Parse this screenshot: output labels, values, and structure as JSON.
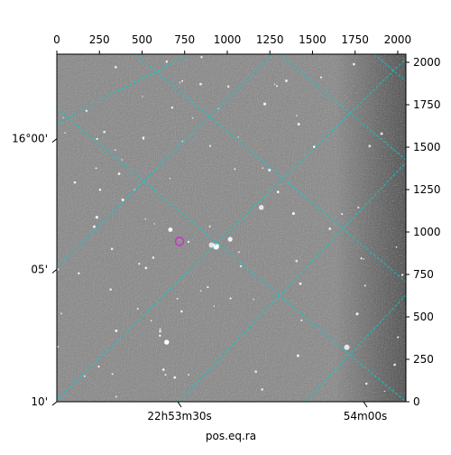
{
  "chart_data": {
    "type": "image",
    "xlabel": "pos.eq.ra",
    "ylabel": "",
    "pixel_axes": {
      "x_ticks": [
        0,
        250,
        500,
        750,
        1000,
        1250,
        1500,
        1750,
        2000
      ],
      "y_ticks": [
        0,
        250,
        500,
        750,
        1000,
        1250,
        1500,
        1750,
        2000
      ],
      "xlim": [
        0,
        2048
      ],
      "ylim": [
        0,
        2048
      ]
    },
    "world_axes": {
      "ra_ticks": [
        {
          "label": "22h53m30s",
          "x": 720
        },
        {
          "label": "54m00s",
          "x": 1810
        }
      ],
      "dec_ticks": [
        {
          "label": "16°00'",
          "y": 1550
        },
        {
          "label": "05'",
          "y": 780
        },
        {
          "label": "10'",
          "y": 0
        }
      ]
    },
    "grid": true,
    "grid_color": "#00d0d0",
    "marker": {
      "shape": "circle",
      "color": "#cc33cc",
      "x": 720,
      "y": 945
    },
    "background_colors": {
      "sky_light": "#8e8e8e",
      "sky_dark": "#5a5a5a"
    }
  }
}
